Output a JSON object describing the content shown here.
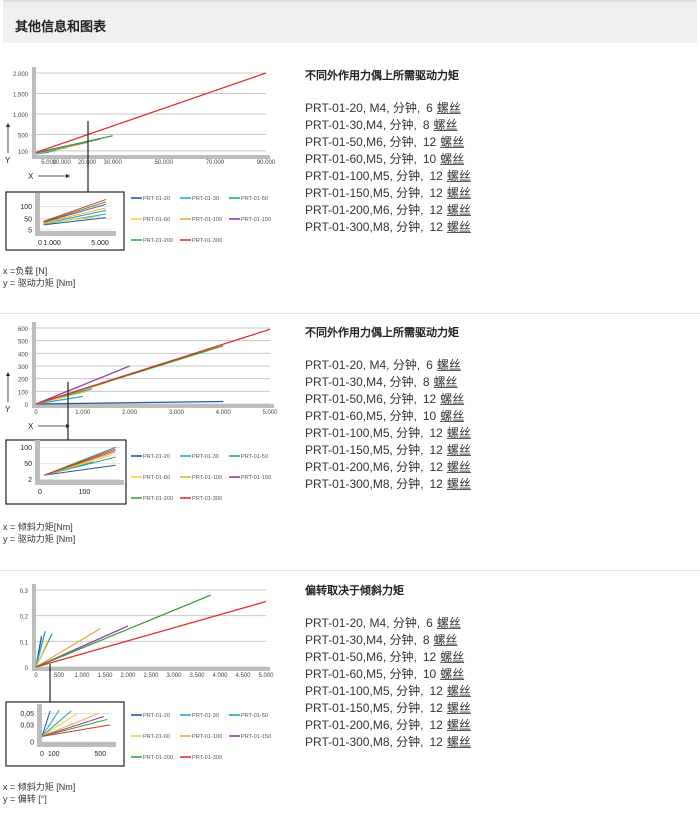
{
  "header": {
    "title": "其他信息和图表"
  },
  "series_colors": {
    "PRT-01-20": "#1f5aa6",
    "PRT-01-30": "#22a8d8",
    "PRT-01-50": "#2aa58a",
    "PRT-01-60": "#f0d23a",
    "PRT-01-100": "#f2a736",
    "PRT-01-150": "#8e3fa3",
    "PRT-01-200": "#3aa33a",
    "PRT-01-300": "#e0322c"
  },
  "sections": [
    {
      "title": "不同外作用力偶上所需驱动力矩",
      "x_caption": "x =负载 [N]",
      "y_caption": "y = 驱动力矩 [Nm]",
      "specs": [
        {
          "model": "PRT-01-20, M4, 分钟,",
          "count": "6",
          "unit": "螺丝"
        },
        {
          "model": "PRT-01-30,M4, 分钟,",
          "count": "8",
          "unit": "螺丝"
        },
        {
          "model": "PRT-01-50,M6, 分钟,",
          "count": "12",
          "unit": "螺丝"
        },
        {
          "model": "PRT-01-60,M5, 分钟,",
          "count": "10",
          "unit": "螺丝"
        },
        {
          "model": "PRT-01-100,M5, 分钟,",
          "count": "12",
          "unit": "螺丝"
        },
        {
          "model": "PRT-01-150,M5, 分钟,",
          "count": "12",
          "unit": "螺丝"
        },
        {
          "model": "PRT-01-200,M6, 分钟,",
          "count": "12",
          "unit": "螺丝"
        },
        {
          "model": "PRT-01-300,M8, 分钟,",
          "count": "12",
          "unit": "螺丝"
        }
      ]
    },
    {
      "title": "不同外作用力偶上所需驱动力矩",
      "x_caption": "x = 倾斜力矩[Nm]",
      "y_caption": "y = 驱动力矩 [Nm]",
      "specs": [
        {
          "model": "PRT-01-20, M4, 分钟,",
          "count": "6",
          "unit": "螺丝"
        },
        {
          "model": "PRT-01-30,M4, 分钟,",
          "count": "8",
          "unit": "螺丝"
        },
        {
          "model": "PRT-01-50,M6, 分钟,",
          "count": "12",
          "unit": "螺丝"
        },
        {
          "model": "PRT-01-60,M5, 分钟,",
          "count": "10",
          "unit": "螺丝"
        },
        {
          "model": "PRT-01-100,M5, 分钟,",
          "count": "12",
          "unit": "螺丝"
        },
        {
          "model": "PRT-01-150,M5, 分钟,",
          "count": "12",
          "unit": "螺丝"
        },
        {
          "model": "PRT-01-200,M6, 分钟,",
          "count": "12",
          "unit": "螺丝"
        },
        {
          "model": "PRT-01-300,M8, 分钟,",
          "count": "12",
          "unit": "螺丝"
        }
      ]
    },
    {
      "title": "偏转取决于倾斜力矩",
      "x_caption": "x = 倾斜力矩 [Nm]",
      "y_caption": "y = 偏转 [°]",
      "specs": [
        {
          "model": "PRT-01-20, M4, 分钟,",
          "count": "6",
          "unit": "螺丝"
        },
        {
          "model": "PRT-01-30,M4, 分钟,",
          "count": "8",
          "unit": "螺丝"
        },
        {
          "model": "PRT-01-50,M6, 分钟,",
          "count": "12",
          "unit": "螺丝"
        },
        {
          "model": "PRT-01-60,M5, 分钟,",
          "count": "10",
          "unit": "螺丝"
        },
        {
          "model": "PRT-01-100,M5, 分钟,",
          "count": "12",
          "unit": "螺丝"
        },
        {
          "model": "PRT-01-150,M5, 分钟,",
          "count": "12",
          "unit": "螺丝"
        },
        {
          "model": "PRT-01-200,M6, 分钟,",
          "count": "12",
          "unit": "螺丝"
        },
        {
          "model": "PRT-01-300,M8, 分钟,",
          "count": "12",
          "unit": "螺丝"
        }
      ]
    }
  ],
  "chart_data": [
    {
      "type": "line",
      "xlabel": "X",
      "ylabel": "Y",
      "xlim": [
        0,
        90000
      ],
      "ylim": [
        0,
        2000
      ],
      "x_ticks": [
        {
          "v": 5000,
          "label": "5.000"
        },
        {
          "v": 10000,
          "label": "10.000"
        },
        {
          "v": 20000,
          "label": "20.000"
        },
        {
          "v": 30000,
          "label": "30.000"
        },
        {
          "v": 50000,
          "label": "50.000"
        },
        {
          "v": 70000,
          "label": "70.000"
        },
        {
          "v": 90000,
          "label": "90.000"
        }
      ],
      "y_ticks": [
        {
          "v": 100,
          "label": "100"
        },
        {
          "v": 500,
          "label": "500"
        },
        {
          "v": 1000,
          "label": "1.000"
        },
        {
          "v": 1500,
          "label": "1.500"
        },
        {
          "v": 2000,
          "label": "2.000"
        }
      ],
      "series": [
        {
          "name": "PRT-01-20",
          "points": [
            [
              0,
              30
            ],
            [
              5000,
              70
            ]
          ]
        },
        {
          "name": "PRT-01-30",
          "points": [
            [
              0,
              35
            ],
            [
              8000,
              110
            ]
          ]
        },
        {
          "name": "PRT-01-50",
          "points": [
            [
              0,
              40
            ],
            [
              12000,
              180
            ]
          ]
        },
        {
          "name": "PRT-01-60",
          "points": [
            [
              0,
              40
            ],
            [
              15000,
              230
            ]
          ]
        },
        {
          "name": "PRT-01-100",
          "points": [
            [
              0,
              45
            ],
            [
              20000,
              300
            ]
          ]
        },
        {
          "name": "PRT-01-150",
          "points": [
            [
              0,
              50
            ],
            [
              25000,
              390
            ]
          ]
        },
        {
          "name": "PRT-01-200",
          "points": [
            [
              0,
              55
            ],
            [
              30000,
              470
            ]
          ]
        },
        {
          "name": "PRT-01-300",
          "points": [
            [
              0,
              60
            ],
            [
              90000,
              2000
            ]
          ]
        }
      ],
      "inset": {
        "xlim": [
          0,
          6000
        ],
        "ylim": [
          0,
          140
        ],
        "x_ticks": [
          {
            "v": 0,
            "label": "0"
          },
          {
            "v": 1000,
            "label": "1.000"
          },
          {
            "v": 5000,
            "label": "5.000"
          }
        ],
        "y_ticks": [
          {
            "v": 5,
            "label": "5"
          },
          {
            "v": 50,
            "label": "50"
          },
          {
            "v": 100,
            "label": "100"
          }
        ],
        "series": [
          {
            "name": "PRT-01-20",
            "points": [
              [
                300,
                25
              ],
              [
                5500,
                55
              ]
            ]
          },
          {
            "name": "PRT-01-30",
            "points": [
              [
                300,
                28
              ],
              [
                5500,
                70
              ]
            ]
          },
          {
            "name": "PRT-01-50",
            "points": [
              [
                300,
                30
              ],
              [
                5500,
                85
              ]
            ]
          },
          {
            "name": "PRT-01-60",
            "points": [
              [
                300,
                32
              ],
              [
                5000,
                60
              ]
            ]
          },
          {
            "name": "PRT-01-100",
            "points": [
              [
                300,
                34
              ],
              [
                5500,
                95
              ]
            ]
          },
          {
            "name": "PRT-01-150",
            "points": [
              [
                300,
                36
              ],
              [
                5500,
                110
              ]
            ]
          },
          {
            "name": "PRT-01-200",
            "points": [
              [
                300,
                38
              ],
              [
                5500,
                120
              ]
            ]
          },
          {
            "name": "PRT-01-300",
            "points": [
              [
                300,
                40
              ],
              [
                5500,
                130
              ]
            ]
          }
        ]
      }
    },
    {
      "type": "line",
      "xlabel": "X",
      "ylabel": "Y",
      "xlim": [
        0,
        5000
      ],
      "ylim": [
        0,
        600
      ],
      "x_ticks": [
        {
          "v": 0,
          "label": "0"
        },
        {
          "v": 1000,
          "label": "1.000"
        },
        {
          "v": 2000,
          "label": "2.000"
        },
        {
          "v": 3000,
          "label": "3.000"
        },
        {
          "v": 4000,
          "label": "4.000"
        },
        {
          "v": 5000,
          "label": "5.000"
        }
      ],
      "y_ticks": [
        {
          "v": 0,
          "label": "0"
        },
        {
          "v": 100,
          "label": "100"
        },
        {
          "v": 200,
          "label": "200"
        },
        {
          "v": 300,
          "label": "300"
        },
        {
          "v": 400,
          "label": "400"
        },
        {
          "v": 500,
          "label": "500"
        },
        {
          "v": 600,
          "label": "600"
        }
      ],
      "series": [
        {
          "name": "PRT-01-20",
          "points": [
            [
              0,
              0
            ],
            [
              4000,
              20
            ]
          ]
        },
        {
          "name": "PRT-01-30",
          "points": [
            [
              0,
              0
            ],
            [
              1000,
              60
            ]
          ]
        },
        {
          "name": "PRT-01-50",
          "points": [
            [
              0,
              0
            ],
            [
              1200,
              120
            ]
          ]
        },
        {
          "name": "PRT-01-60",
          "points": [
            [
              0,
              0
            ],
            [
              1100,
              100
            ]
          ]
        },
        {
          "name": "PRT-01-100",
          "points": [
            [
              0,
              0
            ],
            [
              1500,
              170
            ]
          ]
        },
        {
          "name": "PRT-01-150",
          "points": [
            [
              0,
              0
            ],
            [
              2000,
              300
            ]
          ]
        },
        {
          "name": "PRT-01-200",
          "points": [
            [
              0,
              0
            ],
            [
              4000,
              460
            ]
          ]
        },
        {
          "name": "PRT-01-300",
          "points": [
            [
              0,
              0
            ],
            [
              5000,
              590
            ]
          ]
        }
      ],
      "inset": {
        "xlim": [
          0,
          180
        ],
        "ylim": [
          0,
          110
        ],
        "x_ticks": [
          {
            "v": 0,
            "label": "0"
          },
          {
            "v": 100,
            "label": "100"
          }
        ],
        "y_ticks": [
          {
            "v": 2,
            "label": "2"
          },
          {
            "v": 50,
            "label": "50"
          },
          {
            "v": 100,
            "label": "100"
          }
        ],
        "series": [
          {
            "name": "PRT-01-20",
            "points": [
              [
                10,
                15
              ],
              [
                170,
                45
              ]
            ]
          },
          {
            "name": "PRT-01-30",
            "points": [
              [
                10,
                15
              ],
              [
                120,
                55
              ]
            ]
          },
          {
            "name": "PRT-01-50",
            "points": [
              [
                10,
                15
              ],
              [
                170,
                70
              ]
            ]
          },
          {
            "name": "PRT-01-60",
            "points": [
              [
                10,
                15
              ],
              [
                160,
                75
              ]
            ]
          },
          {
            "name": "PRT-01-100",
            "points": [
              [
                10,
                15
              ],
              [
                170,
                85
              ]
            ]
          },
          {
            "name": "PRT-01-150",
            "points": [
              [
                10,
                15
              ],
              [
                170,
                95
              ]
            ]
          },
          {
            "name": "PRT-01-200",
            "points": [
              [
                10,
                15
              ],
              [
                170,
                100
              ]
            ]
          },
          {
            "name": "PRT-01-300",
            "points": [
              [
                10,
                15
              ],
              [
                170,
                90
              ]
            ]
          }
        ]
      }
    },
    {
      "type": "line",
      "xlabel": "",
      "ylabel": "",
      "xlim": [
        0,
        5000
      ],
      "ylim": [
        0,
        0.3
      ],
      "x_ticks": [
        {
          "v": 0,
          "label": "0"
        },
        {
          "v": 500,
          "label": "500"
        },
        {
          "v": 1000,
          "label": "1.000"
        },
        {
          "v": 1500,
          "label": "1.500"
        },
        {
          "v": 2000,
          "label": "2.000"
        },
        {
          "v": 2500,
          "label": "2.500"
        },
        {
          "v": 3000,
          "label": "3.000"
        },
        {
          "v": 3500,
          "label": "3.500"
        },
        {
          "v": 4000,
          "label": "4.000"
        },
        {
          "v": 4500,
          "label": "4.500"
        },
        {
          "v": 5000,
          "label": "5.000"
        }
      ],
      "y_ticks": [
        {
          "v": 0,
          "label": "0"
        },
        {
          "v": 0.1,
          "label": "0,1"
        },
        {
          "v": 0.2,
          "label": "0,2"
        },
        {
          "v": 0.3,
          "label": "0,3"
        }
      ],
      "series": [
        {
          "name": "PRT-01-20",
          "points": [
            [
              0,
              0
            ],
            [
              120,
              0.12
            ]
          ]
        },
        {
          "name": "PRT-01-30",
          "points": [
            [
              0,
              0
            ],
            [
              200,
              0.14
            ]
          ]
        },
        {
          "name": "PRT-01-50",
          "points": [
            [
              0,
              0
            ],
            [
              350,
              0.13
            ]
          ]
        },
        {
          "name": "PRT-01-60",
          "points": [
            [
              0,
              0
            ],
            [
              250,
              0.1
            ]
          ]
        },
        {
          "name": "PRT-01-100",
          "points": [
            [
              0,
              0
            ],
            [
              1400,
              0.15
            ]
          ]
        },
        {
          "name": "PRT-01-150",
          "points": [
            [
              0,
              0
            ],
            [
              2000,
              0.16
            ]
          ]
        },
        {
          "name": "PRT-01-200",
          "points": [
            [
              0,
              0
            ],
            [
              3800,
              0.28
            ]
          ]
        },
        {
          "name": "PRT-01-300",
          "points": [
            [
              0,
              0
            ],
            [
              5000,
              0.255
            ]
          ]
        }
      ],
      "inset": {
        "xlim": [
          0,
          600
        ],
        "ylim": [
          0,
          0.06
        ],
        "x_ticks": [
          {
            "v": 0,
            "label": "0"
          },
          {
            "v": 100,
            "label": "100"
          },
          {
            "v": 500,
            "label": "500"
          }
        ],
        "y_ticks": [
          {
            "v": 0,
            "label": "0"
          },
          {
            "v": 0.03,
            "label": "0,03"
          },
          {
            "v": 0.05,
            "label": "0,05"
          }
        ],
        "series": [
          {
            "name": "PRT-01-20",
            "points": [
              [
                0,
                0.01
              ],
              [
                70,
                0.055
              ]
            ]
          },
          {
            "name": "PRT-01-30",
            "points": [
              [
                0,
                0.01
              ],
              [
                150,
                0.057
              ]
            ]
          },
          {
            "name": "PRT-01-50",
            "points": [
              [
                0,
                0.01
              ],
              [
                250,
                0.055
              ]
            ]
          },
          {
            "name": "PRT-01-60",
            "points": [
              [
                0,
                0.01
              ],
              [
                300,
                0.05
              ]
            ]
          },
          {
            "name": "PRT-01-100",
            "points": [
              [
                0,
                0.01
              ],
              [
                480,
                0.05
              ]
            ]
          },
          {
            "name": "PRT-01-150",
            "points": [
              [
                0,
                0.01
              ],
              [
                530,
                0.045
              ]
            ]
          },
          {
            "name": "PRT-01-200",
            "points": [
              [
                0,
                0.01
              ],
              [
                560,
                0.04
              ]
            ]
          },
          {
            "name": "PRT-01-300",
            "points": [
              [
                0,
                0.01
              ],
              [
                580,
                0.03
              ]
            ]
          }
        ]
      }
    }
  ]
}
